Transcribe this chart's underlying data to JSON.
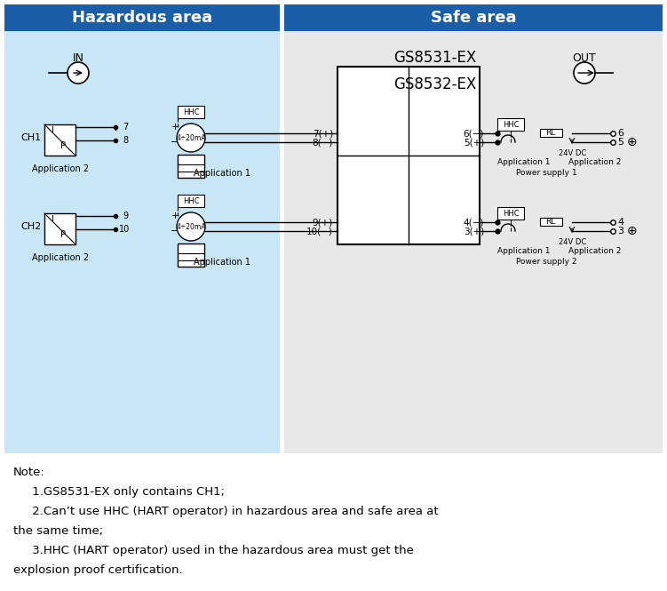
{
  "header_bg_color": "#1a5ea8",
  "header_text_color": "#ffffff",
  "hazardous_bg": "#c8e6f5",
  "safe_bg": "#e8e8e8",
  "white_bg": "#ffffff",
  "title_left": "Hazardous area",
  "title_right": "Safe area",
  "model_text": "GS8531-EX\nGS8532-EX",
  "note_lines": [
    "Note:",
    "     1.GS8531-EX only contains CH1;",
    "     2.Can’t use HHC (HART operator) in hazardous area and safe area at",
    "the same time;",
    "     3.HHC (HART operator) used in the hazardous area must get the",
    "explosion proof certification."
  ],
  "line_color": "#000000",
  "box_color": "#000000",
  "text_color": "#000000"
}
